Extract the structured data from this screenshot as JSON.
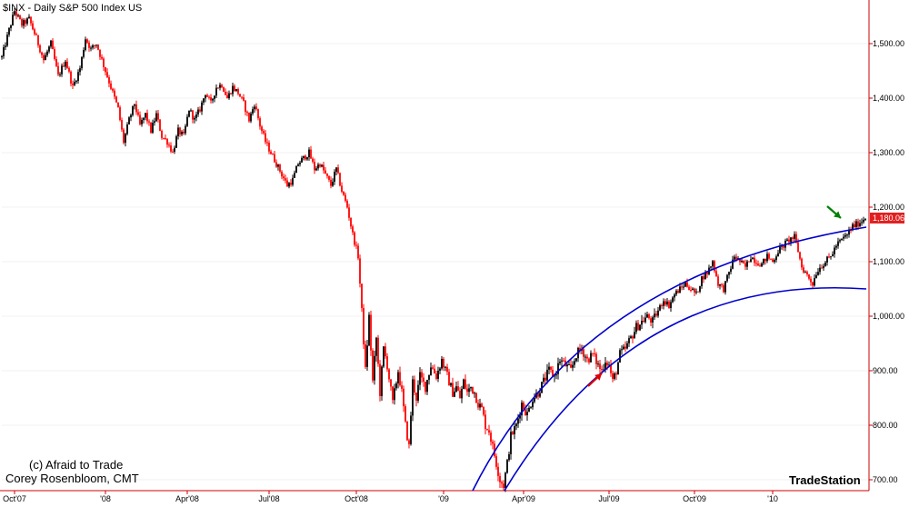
{
  "header": {
    "title": "$INX - Daily  S&P 500 Index  US"
  },
  "watermark": {
    "line1": "(c) Afraid to Trade",
    "line2": "Corey Rosenbloom, CMT"
  },
  "brand": "TradeStation",
  "colors": {
    "up": "#000000",
    "down": "#ff0000",
    "arc": "#0000cc",
    "axis": "#cc0000",
    "last_bg": "#e02020",
    "red_arrow": "#e00000",
    "green_arrow": "#008000"
  },
  "chart_data": {
    "type": "candlestick",
    "title": "$INX - Daily  S&P 500 Index  US",
    "ylim": [
      680,
      1580
    ],
    "y_ticks": [
      700,
      800,
      900,
      1000,
      1100,
      1200,
      1300,
      1400,
      1500
    ],
    "y_tick_labels": [
      "700.00",
      "800.00",
      "900.00",
      "1,000.00",
      "1,100.00",
      "1,200.00",
      "1,300.00",
      "1,400.00",
      "1,500.00"
    ],
    "x_labels": [
      "Oct'07",
      "'08",
      "Apr'08",
      "Jul'08",
      "Oct'08",
      "'09",
      "Apr'09",
      "Jul'09",
      "Oct'09",
      "'10"
    ],
    "last_value": 1180.06,
    "last_value_label": "1,180.06",
    "annotations": [
      {
        "type": "arc",
        "description": "upper arc"
      },
      {
        "type": "arc",
        "description": "lower arc"
      },
      {
        "type": "arrow",
        "color": "red"
      },
      {
        "type": "arrow",
        "color": "green"
      }
    ],
    "series": [
      {
        "points": [
          [
            0,
            1475
          ],
          [
            8,
            1525
          ],
          [
            14,
            1560
          ],
          [
            22,
            1535
          ],
          [
            30,
            1545
          ],
          [
            38,
            1510
          ],
          [
            46,
            1470
          ],
          [
            54,
            1500
          ],
          [
            62,
            1440
          ],
          [
            70,
            1470
          ],
          [
            78,
            1420
          ],
          [
            86,
            1455
          ],
          [
            92,
            1510
          ],
          [
            98,
            1490
          ],
          [
            104,
            1500
          ],
          [
            110,
            1470
          ],
          [
            116,
            1440
          ],
          [
            122,
            1410
          ],
          [
            128,
            1380
          ],
          [
            134,
            1320
          ],
          [
            140,
            1360
          ],
          [
            146,
            1390
          ],
          [
            152,
            1350
          ],
          [
            158,
            1370
          ],
          [
            164,
            1340
          ],
          [
            170,
            1370
          ],
          [
            176,
            1330
          ],
          [
            182,
            1320
          ],
          [
            188,
            1300
          ],
          [
            194,
            1340
          ],
          [
            200,
            1330
          ],
          [
            206,
            1380
          ],
          [
            212,
            1360
          ],
          [
            218,
            1380
          ],
          [
            224,
            1410
          ],
          [
            230,
            1390
          ],
          [
            236,
            1420
          ],
          [
            242,
            1425
          ],
          [
            248,
            1400
          ],
          [
            254,
            1420
          ],
          [
            260,
            1410
          ],
          [
            266,
            1390
          ],
          [
            272,
            1360
          ],
          [
            278,
            1390
          ],
          [
            284,
            1350
          ],
          [
            290,
            1320
          ],
          [
            296,
            1300
          ],
          [
            302,
            1280
          ],
          [
            308,
            1260
          ],
          [
            314,
            1240
          ],
          [
            320,
            1250
          ],
          [
            326,
            1280
          ],
          [
            332,
            1290
          ],
          [
            338,
            1300
          ],
          [
            344,
            1270
          ],
          [
            350,
            1280
          ],
          [
            356,
            1260
          ],
          [
            362,
            1240
          ],
          [
            368,
            1270
          ],
          [
            374,
            1230
          ],
          [
            380,
            1200
          ],
          [
            386,
            1150
          ],
          [
            392,
            1110
          ],
          [
            396,
            1010
          ],
          [
            400,
            900
          ],
          [
            404,
            1000
          ],
          [
            408,
            880
          ],
          [
            412,
            960
          ],
          [
            416,
            860
          ],
          [
            420,
            940
          ],
          [
            424,
            910
          ],
          [
            430,
            840
          ],
          [
            436,
            900
          ],
          [
            440,
            860
          ],
          [
            444,
            800
          ],
          [
            448,
            760
          ],
          [
            452,
            880
          ],
          [
            456,
            850
          ],
          [
            460,
            890
          ],
          [
            466,
            870
          ],
          [
            472,
            910
          ],
          [
            478,
            890
          ],
          [
            484,
            920
          ],
          [
            488,
            900
          ],
          [
            492,
            880
          ],
          [
            496,
            860
          ],
          [
            500,
            870
          ],
          [
            504,
            850
          ],
          [
            508,
            880
          ],
          [
            512,
            860
          ],
          [
            516,
            870
          ],
          [
            520,
            860
          ],
          [
            524,
            840
          ],
          [
            528,
            830
          ],
          [
            532,
            800
          ],
          [
            536,
            790
          ],
          [
            540,
            760
          ],
          [
            544,
            730
          ],
          [
            548,
            700
          ],
          [
            552,
            690
          ],
          [
            556,
            730
          ],
          [
            560,
            780
          ],
          [
            566,
            800
          ],
          [
            572,
            840
          ],
          [
            578,
            820
          ],
          [
            584,
            850
          ],
          [
            590,
            860
          ],
          [
            596,
            880
          ],
          [
            602,
            900
          ],
          [
            608,
            890
          ],
          [
            614,
            920
          ],
          [
            620,
            910
          ],
          [
            626,
            900
          ],
          [
            632,
            930
          ],
          [
            638,
            940
          ],
          [
            644,
            920
          ],
          [
            650,
            930
          ],
          [
            656,
            910
          ],
          [
            660,
            900
          ],
          [
            664,
            920
          ],
          [
            668,
            910
          ],
          [
            672,
            880
          ],
          [
            676,
            900
          ],
          [
            680,
            930
          ],
          [
            686,
            940
          ],
          [
            692,
            960
          ],
          [
            698,
            980
          ],
          [
            704,
            990
          ],
          [
            710,
            1000
          ],
          [
            716,
            990
          ],
          [
            722,
            1010
          ],
          [
            728,
            1030
          ],
          [
            734,
            1020
          ],
          [
            740,
            1040
          ],
          [
            746,
            1050
          ],
          [
            752,
            1060
          ],
          [
            758,
            1050
          ],
          [
            764,
            1040
          ],
          [
            770,
            1070
          ],
          [
            776,
            1080
          ],
          [
            782,
            1100
          ],
          [
            788,
            1060
          ],
          [
            794,
            1050
          ],
          [
            800,
            1080
          ],
          [
            806,
            1110
          ],
          [
            812,
            1100
          ],
          [
            818,
            1090
          ],
          [
            824,
            1110
          ],
          [
            830,
            1100
          ],
          [
            836,
            1095
          ],
          [
            842,
            1110
          ],
          [
            848,
            1100
          ],
          [
            854,
            1120
          ],
          [
            860,
            1130
          ],
          [
            866,
            1140
          ],
          [
            872,
            1145
          ],
          [
            876,
            1120
          ],
          [
            880,
            1090
          ],
          [
            884,
            1080
          ],
          [
            888,
            1070
          ],
          [
            892,
            1060
          ],
          [
            896,
            1080
          ],
          [
            900,
            1090
          ],
          [
            906,
            1100
          ],
          [
            912,
            1110
          ],
          [
            918,
            1130
          ],
          [
            924,
            1140
          ],
          [
            930,
            1150
          ],
          [
            936,
            1165
          ],
          [
            942,
            1170
          ],
          [
            946,
            1175
          ],
          [
            950,
            1182
          ]
        ]
      }
    ]
  }
}
